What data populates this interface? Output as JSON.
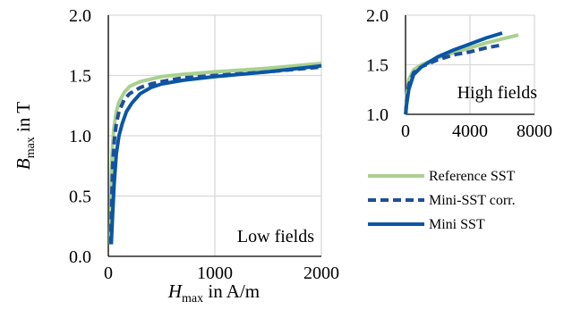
{
  "chart_data": [
    {
      "type": "line",
      "panel_label": "Low fields",
      "xlabel": {
        "main": "H",
        "sub": "max",
        "rest": " in A/m"
      },
      "ylabel": {
        "main": "B",
        "sub": "max",
        "rest": " in T"
      },
      "xlim": [
        0,
        2000
      ],
      "ylim": [
        0.0,
        2.0
      ],
      "xticks": [
        "0",
        "1000",
        "2000"
      ],
      "yticks": [
        "0.0",
        "0.5",
        "1.0",
        "1.5",
        "2.0"
      ],
      "grid": true,
      "series": [
        {
          "name": "Reference SST",
          "color": "#a9d18e",
          "style": "solid",
          "x": [
            18,
            25,
            35,
            50,
            75,
            100,
            150,
            200,
            300,
            400,
            500,
            700,
            1000,
            1500,
            2000
          ],
          "y": [
            0.1,
            0.5,
            0.85,
            1.05,
            1.2,
            1.28,
            1.36,
            1.41,
            1.45,
            1.47,
            1.49,
            1.51,
            1.53,
            1.56,
            1.6
          ]
        },
        {
          "name": "Mini-SST corr.",
          "color": "#1f4e9a",
          "style": "dashed",
          "x": [
            22,
            30,
            40,
            55,
            75,
            100,
            150,
            200,
            300,
            400,
            500,
            700,
            1000,
            1500,
            2000
          ],
          "y": [
            0.1,
            0.4,
            0.75,
            0.95,
            1.1,
            1.2,
            1.3,
            1.35,
            1.4,
            1.43,
            1.45,
            1.48,
            1.5,
            1.53,
            1.57
          ]
        },
        {
          "name": "Mini SST",
          "color": "#0b56a4",
          "style": "solid",
          "x": [
            28,
            40,
            55,
            75,
            100,
            130,
            170,
            220,
            300,
            400,
            500,
            700,
            1000,
            1500,
            2000
          ],
          "y": [
            0.1,
            0.35,
            0.6,
            0.85,
            1.0,
            1.1,
            1.2,
            1.27,
            1.35,
            1.4,
            1.43,
            1.46,
            1.49,
            1.53,
            1.58
          ]
        }
      ]
    },
    {
      "type": "line",
      "panel_label": "High fields",
      "xlim": [
        0,
        8000
      ],
      "ylim": [
        1.0,
        2.0
      ],
      "xticks": [
        "0",
        "4000",
        "8000"
      ],
      "yticks": [
        "1.0",
        "1.5",
        "2.0"
      ],
      "grid": true,
      "series": [
        {
          "name": "Reference SST",
          "color": "#a9d18e",
          "style": "solid",
          "x": [
            10,
            50,
            200,
            500,
            1000,
            2000,
            3000,
            4000,
            5000,
            6000,
            7000
          ],
          "y": [
            1.0,
            1.15,
            1.35,
            1.45,
            1.5,
            1.57,
            1.62,
            1.67,
            1.72,
            1.76,
            1.8
          ]
        },
        {
          "name": "Mini-SST corr.",
          "color": "#1f4e9a",
          "style": "dashed",
          "x": [
            10,
            50,
            200,
            500,
            1000,
            2000,
            3000,
            4000,
            5000,
            6000
          ],
          "y": [
            1.0,
            1.1,
            1.3,
            1.42,
            1.48,
            1.55,
            1.6,
            1.63,
            1.67,
            1.7
          ]
        },
        {
          "name": "Mini SST",
          "color": "#0b56a4",
          "style": "solid",
          "x": [
            10,
            50,
            200,
            500,
            1000,
            2000,
            3000,
            4000,
            5000,
            6000
          ],
          "y": [
            1.0,
            1.08,
            1.25,
            1.4,
            1.48,
            1.58,
            1.65,
            1.71,
            1.77,
            1.82
          ]
        }
      ]
    }
  ]
}
